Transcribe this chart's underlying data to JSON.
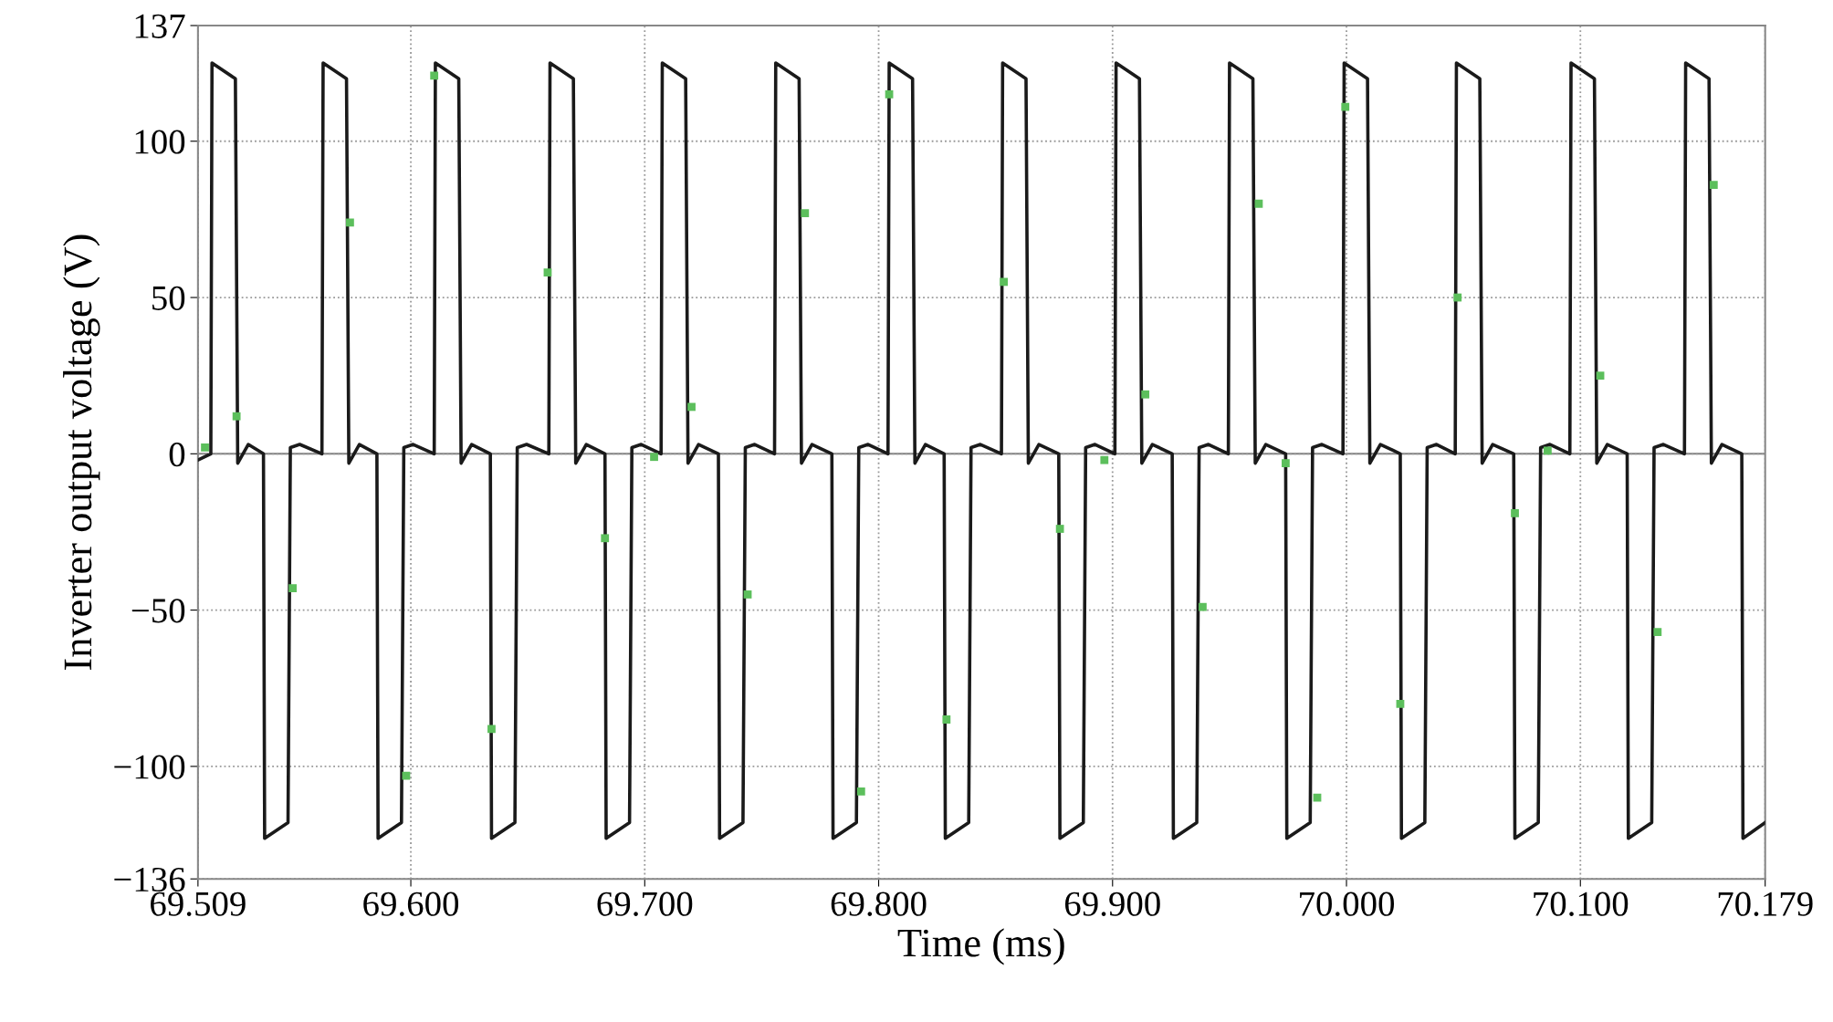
{
  "chart_data": {
    "type": "line",
    "xlabel": "Time (ms)",
    "ylabel": "Inverter output voltage (V)",
    "xlim": [
      69.509,
      70.179
    ],
    "ylim": [
      -136,
      137
    ],
    "xticks": [
      69.509,
      {
        "value": 69.6,
        "label": "69.600"
      },
      {
        "value": 69.7,
        "label": "69.700"
      },
      {
        "value": 69.8,
        "label": "69.800"
      },
      {
        "value": 69.9,
        "label": "69.900"
      },
      {
        "value": 70.0,
        "label": "70.000"
      },
      {
        "value": 70.1,
        "label": "70.100"
      },
      70.179
    ],
    "yticks": [
      {
        "value": -136,
        "label": "−136"
      },
      {
        "value": -100,
        "label": "−100"
      },
      {
        "value": -50,
        "label": "−50"
      },
      0,
      50,
      100,
      137
    ],
    "grid": true,
    "line_style": "solid",
    "ref_lines": [
      {
        "axis": "y",
        "value": 0,
        "color": "#808080"
      }
    ],
    "series": [
      {
        "color": "#1a1a1a",
        "x": [
          69.509,
          69.5145,
          69.515,
          69.525,
          69.526,
          69.5305,
          69.537,
          69.5375,
          69.5475,
          69.5485,
          69.5525,
          69.562,
          69.5625,
          69.5725,
          69.5735,
          69.578,
          69.5855,
          69.586,
          69.596,
          69.597,
          69.601,
          69.61,
          69.6105,
          69.6205,
          69.6215,
          69.626,
          69.634,
          69.6345,
          69.6445,
          69.6455,
          69.6495,
          69.659,
          69.6595,
          69.6695,
          69.6705,
          69.675,
          69.683,
          69.6835,
          69.6935,
          69.6945,
          69.6985,
          69.707,
          69.7075,
          69.7175,
          69.7185,
          69.723,
          69.7315,
          69.732,
          69.742,
          69.743,
          69.747,
          69.7555,
          69.756,
          69.766,
          69.767,
          69.7715,
          69.78,
          69.7805,
          69.7905,
          69.7915,
          69.7955,
          69.804,
          69.8045,
          69.8145,
          69.8155,
          69.82,
          69.828,
          69.8285,
          69.8385,
          69.8395,
          69.8435,
          69.8525,
          69.853,
          69.863,
          69.864,
          69.8685,
          69.877,
          69.8775,
          69.8875,
          69.8885,
          69.8925,
          69.901,
          69.9015,
          69.9115,
          69.9125,
          69.917,
          69.9255,
          69.926,
          69.936,
          69.937,
          69.941,
          69.9495,
          69.95,
          69.96,
          69.961,
          69.9655,
          69.974,
          69.9745,
          69.9845,
          69.9855,
          69.9895,
          69.9985,
          69.999,
          70.009,
          70.01,
          70.0145,
          70.023,
          70.0235,
          70.0335,
          70.0345,
          70.0385,
          70.0465,
          70.047,
          70.057,
          70.058,
          70.0625,
          70.0715,
          70.072,
          70.082,
          70.083,
          70.087,
          70.0955,
          70.096,
          70.106,
          70.107,
          70.1115,
          70.12,
          70.1205,
          70.1305,
          70.1315,
          70.1355,
          70.1445,
          70.145,
          70.155,
          70.156,
          70.1605,
          70.169,
          70.1695,
          70.179
        ],
        "values": [
          -2,
          0,
          125,
          120,
          -3,
          3,
          0,
          -123,
          -118,
          2,
          3,
          0,
          125,
          120,
          -3,
          3,
          0,
          -123,
          -118,
          2,
          3,
          0,
          125,
          120,
          -3,
          3,
          0,
          -123,
          -118,
          2,
          3,
          0,
          125,
          120,
          -3,
          3,
          0,
          -123,
          -118,
          2,
          3,
          0,
          125,
          120,
          -3,
          3,
          0,
          -123,
          -118,
          2,
          3,
          0,
          125,
          120,
          -3,
          3,
          0,
          -123,
          -118,
          2,
          3,
          0,
          125,
          120,
          -3,
          3,
          0,
          -123,
          -118,
          2,
          3,
          0,
          125,
          120,
          -3,
          3,
          0,
          -123,
          -118,
          2,
          3,
          0,
          125,
          120,
          -3,
          3,
          0,
          -123,
          -118,
          2,
          3,
          0,
          125,
          120,
          -3,
          3,
          0,
          -123,
          -118,
          2,
          3,
          0,
          125,
          120,
          -3,
          3,
          0,
          -123,
          -118,
          2,
          3,
          0,
          125,
          120,
          -3,
          3,
          0,
          -123,
          -118,
          2,
          3,
          0,
          125,
          120,
          -3,
          3,
          0,
          -123,
          -118,
          2,
          3,
          0,
          125,
          120,
          -3,
          3,
          0,
          -123,
          -118
        ]
      },
      {
        "type": "scatter",
        "color": "#5cbf5c",
        "marker": "square",
        "x": [
          69.512,
          69.5255,
          69.5495,
          69.574,
          69.598,
          69.61,
          69.6345,
          69.6585,
          69.683,
          69.704,
          69.72,
          69.744,
          69.7685,
          69.7925,
          69.8045,
          69.829,
          69.8535,
          69.8775,
          69.8965,
          69.914,
          69.9385,
          69.9625,
          69.974,
          69.9875,
          69.9995,
          70.023,
          70.0475,
          70.072,
          70.086,
          70.1085,
          70.133,
          70.157
        ],
        "values": [
          2,
          12,
          -43,
          74,
          -103,
          121,
          -88,
          58,
          -27,
          -1,
          15,
          -45,
          77,
          -108,
          115,
          -85,
          55,
          -24,
          -2,
          19,
          -49,
          80,
          -3,
          -110,
          111,
          -80,
          50,
          -19,
          1,
          25,
          -57,
          86
        ]
      }
    ]
  }
}
